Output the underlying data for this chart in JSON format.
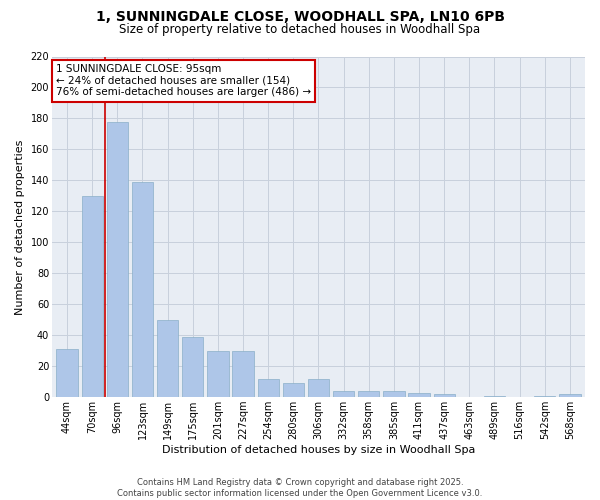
{
  "title_line1": "1, SUNNINGDALE CLOSE, WOODHALL SPA, LN10 6PB",
  "title_line2": "Size of property relative to detached houses in Woodhall Spa",
  "xlabel": "Distribution of detached houses by size in Woodhall Spa",
  "ylabel": "Number of detached properties",
  "categories": [
    "44sqm",
    "70sqm",
    "96sqm",
    "123sqm",
    "149sqm",
    "175sqm",
    "201sqm",
    "227sqm",
    "254sqm",
    "280sqm",
    "306sqm",
    "332sqm",
    "358sqm",
    "385sqm",
    "411sqm",
    "437sqm",
    "463sqm",
    "489sqm",
    "516sqm",
    "542sqm",
    "568sqm"
  ],
  "values": [
    31,
    130,
    178,
    139,
    50,
    39,
    30,
    30,
    12,
    9,
    12,
    4,
    4,
    4,
    3,
    2,
    0,
    1,
    0,
    1,
    2
  ],
  "bar_color": "#aec6e8",
  "bar_edgecolor": "#8aafc8",
  "grid_color": "#c8d0dc",
  "bg_color": "#e8edf4",
  "vline_color": "#cc0000",
  "annotation_text": "1 SUNNINGDALE CLOSE: 95sqm\n← 24% of detached houses are smaller (154)\n76% of semi-detached houses are larger (486) →",
  "annotation_box_edgecolor": "#cc0000",
  "footnote": "Contains HM Land Registry data © Crown copyright and database right 2025.\nContains public sector information licensed under the Open Government Licence v3.0.",
  "ylim": [
    0,
    220
  ],
  "yticks": [
    0,
    20,
    40,
    60,
    80,
    100,
    120,
    140,
    160,
    180,
    200,
    220
  ],
  "title_fontsize": 10,
  "subtitle_fontsize": 8.5,
  "ylabel_fontsize": 8,
  "xlabel_fontsize": 8,
  "tick_fontsize": 7,
  "footnote_fontsize": 6,
  "annotation_fontsize": 7.5
}
